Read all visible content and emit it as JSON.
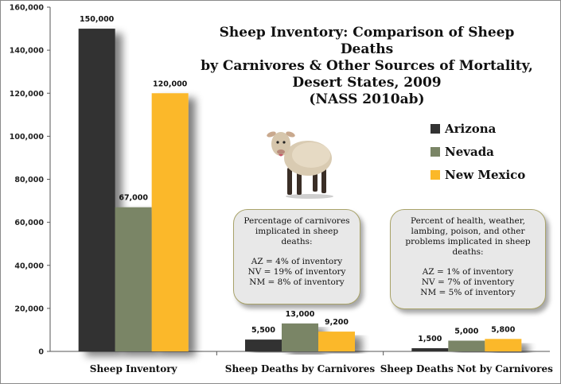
{
  "title_lines": [
    "Sheep Inventory: Comparison of Sheep Deaths",
    "by Carnivores & Other Sources of Mortality,",
    "Desert States, 2009",
    "(NASS 2010ab)"
  ],
  "legend": [
    {
      "label": "Arizona",
      "color": "#333333"
    },
    {
      "label": "Nevada",
      "color": "#7a8566"
    },
    {
      "label": "New Mexico",
      "color": "#fbb829"
    }
  ],
  "chart_data": {
    "type": "bar",
    "title": "Sheep Inventory: Comparison of Sheep Deaths by Carnivores & Other Sources of Mortality, Desert States, 2009 (NASS 2010ab)",
    "categories": [
      "Sheep Inventory",
      "Sheep Deaths by Carnivores",
      "Sheep Deaths Not by Carnivores"
    ],
    "series": [
      {
        "name": "Arizona",
        "values": [
          150000,
          5500,
          1500
        ],
        "labels": [
          "150,000",
          "5,500",
          "1,500"
        ],
        "color": "#333333"
      },
      {
        "name": "Nevada",
        "values": [
          67000,
          13000,
          5000
        ],
        "labels": [
          "67,000",
          "13,000",
          "5,000"
        ],
        "color": "#7a8566"
      },
      {
        "name": "New Mexico",
        "values": [
          120000,
          9200,
          5800
        ],
        "labels": [
          "120,000",
          "9,200",
          "5,800"
        ],
        "color": "#fbb829"
      }
    ],
    "ylim": [
      0,
      160000
    ],
    "yticks": [
      0,
      20000,
      40000,
      60000,
      80000,
      100000,
      120000,
      140000,
      160000
    ],
    "ytick_labels": [
      "0",
      "20,000",
      "40,000",
      "60,000",
      "80,000",
      "100,000",
      "120,000",
      "140,000",
      "160,000"
    ],
    "grid": false,
    "legend_position": "right"
  },
  "callouts": {
    "carnivores": {
      "heading": "Percentage of carnivores implicated in sheep deaths:",
      "lines": [
        "AZ = 4% of inventory",
        "NV = 19% of inventory",
        "NM = 8% of inventory"
      ]
    },
    "other": {
      "heading": "Percent of health, weather, lambing, poison, and other problems implicated in sheep deaths:",
      "lines": [
        "AZ = 1% of inventory",
        "NV = 7% of inventory",
        "NM = 5% of inventory"
      ]
    }
  },
  "image_icon": "sheep-icon"
}
